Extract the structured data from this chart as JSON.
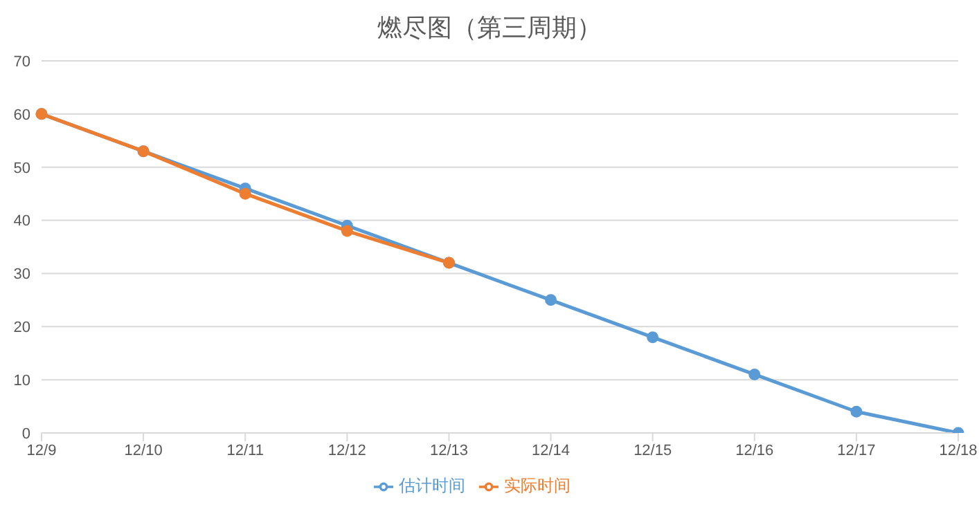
{
  "chart_data": {
    "type": "line",
    "title": "燃尽图（第三周期）",
    "categories": [
      "12/9",
      "12/10",
      "12/11",
      "12/12",
      "12/13",
      "12/14",
      "12/15",
      "12/16",
      "12/17",
      "12/18"
    ],
    "series": [
      {
        "name": "估计时间",
        "color": "#5b9bd5",
        "values": [
          60,
          53,
          46,
          39,
          32,
          25,
          18,
          11,
          4,
          0
        ]
      },
      {
        "name": "实际时间",
        "color": "#ed7d31",
        "values": [
          60,
          53,
          45,
          38,
          32,
          null,
          null,
          null,
          null,
          null
        ]
      }
    ],
    "ylim": [
      0,
      70
    ],
    "yticks": [
      0,
      10,
      20,
      30,
      40,
      50,
      60,
      70
    ],
    "grid": "y",
    "legend": "bottom",
    "marker": "circle",
    "line_style": "solid"
  }
}
